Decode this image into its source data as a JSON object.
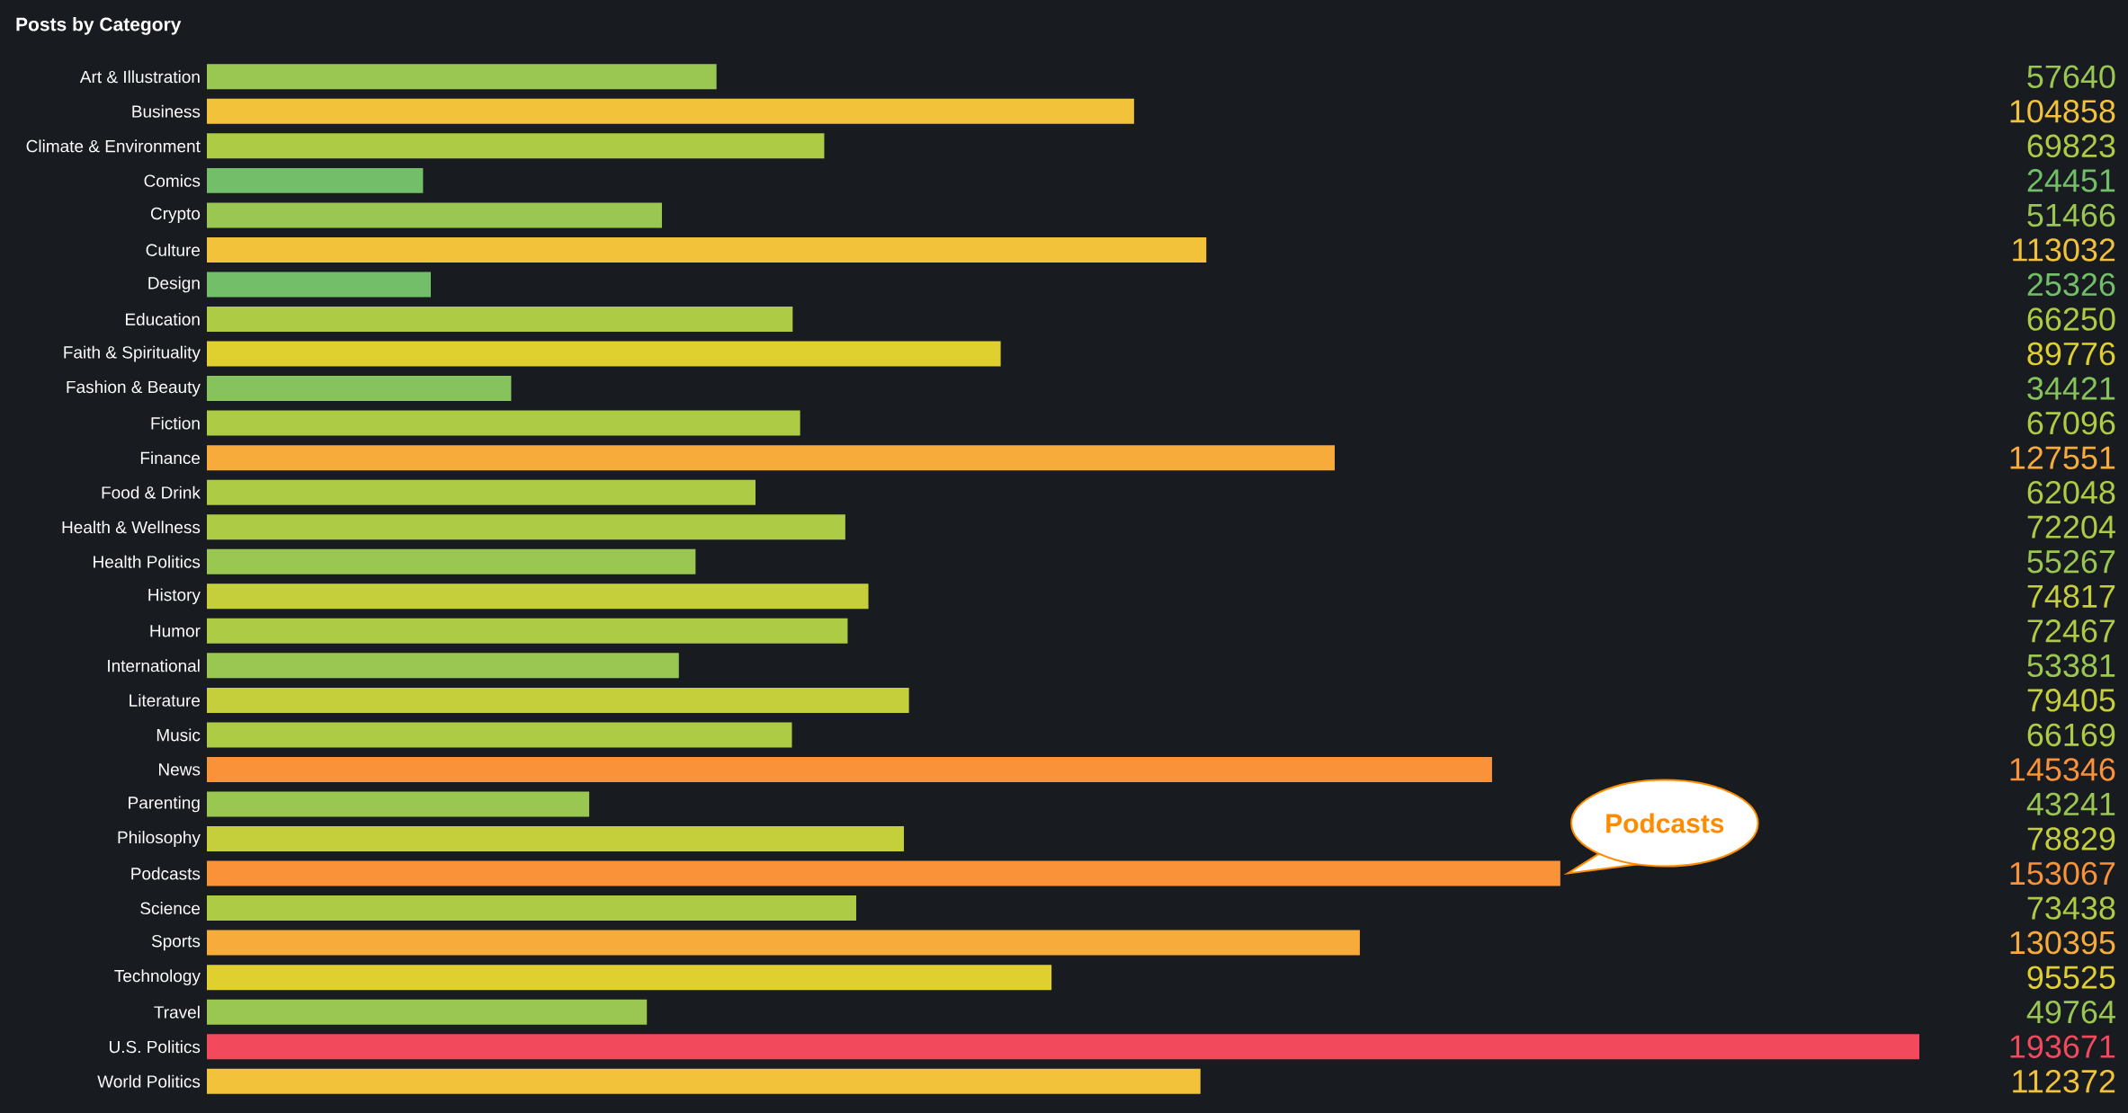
{
  "chart_data": {
    "type": "bar",
    "title": "Posts by Category",
    "orientation": "horizontal",
    "tick_labels": "y",
    "data_labels": true,
    "xlim": [
      0,
      193671
    ],
    "categories": [
      "Art & Illustration",
      "Business",
      "Climate & Environment",
      "Comics",
      "Crypto",
      "Culture",
      "Design",
      "Education",
      "Faith & Spirituality",
      "Fashion & Beauty",
      "Fiction",
      "Finance",
      "Food & Drink",
      "Health & Wellness",
      "Health Politics",
      "History",
      "Humor",
      "International",
      "Literature",
      "Music",
      "News",
      "Parenting",
      "Philosophy",
      "Podcasts",
      "Science",
      "Sports",
      "Technology",
      "Travel",
      "U.S. Politics",
      "World Politics"
    ],
    "values": [
      57640,
      104858,
      69823,
      24451,
      51466,
      113032,
      25326,
      66250,
      89776,
      34421,
      67096,
      127551,
      62048,
      72204,
      55267,
      74817,
      72467,
      53381,
      79405,
      66169,
      145346,
      43241,
      78829,
      153067,
      73438,
      130395,
      95525,
      49764,
      193671,
      112372
    ],
    "colors": [
      "#9ac751",
      "#f2c23a",
      "#aecb46",
      "#73bf69",
      "#9ac751",
      "#f2c23a",
      "#73bf69",
      "#aecb46",
      "#e0d02f",
      "#86c35d",
      "#aecb46",
      "#f7ab3a",
      "#aecb46",
      "#aecb46",
      "#9ac751",
      "#c4cf3b",
      "#aecb46",
      "#9ac751",
      "#c4cf3b",
      "#aecb46",
      "#f99238",
      "#9ac751",
      "#c4cf3b",
      "#f99238",
      "#aecb46",
      "#f7ab3a",
      "#e0d02f",
      "#9ac751",
      "#f2495c",
      "#f2c23a"
    ],
    "annotations": [
      {
        "text": "Podcasts",
        "x": 153067,
        "y": "Podcasts"
      }
    ]
  }
}
